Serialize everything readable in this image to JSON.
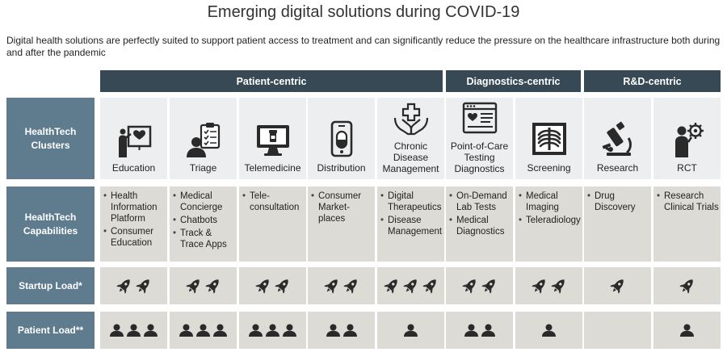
{
  "title": "Emerging digital solutions during COVID-19",
  "subtitle": "Digital health solutions are perfectly suited to support patient access to treatment and can significantly reduce the pressure on the healthcare infrastructure both during and after the pandemic",
  "groups": [
    {
      "label": "Patient-centric"
    },
    {
      "label": "Diagnostics-centric"
    },
    {
      "label": "R&D-centric"
    }
  ],
  "row_labels": {
    "clusters": "HealthTech Clusters",
    "capabilities": "HealthTech Capabilities",
    "startup_load": "Startup Load*",
    "patient_load": "Patient Load**"
  },
  "columns": [
    {
      "cluster": "Education",
      "icon": "whiteboard-heart-icon",
      "capabilities": [
        "Health Information Platform",
        "Consumer Education"
      ],
      "startup_load": 2,
      "patient_load": 3
    },
    {
      "cluster": "Triage",
      "icon": "clipboard-person-icon",
      "capabilities": [
        "Medical Concierge",
        "Chatbots",
        "Track & Trace Apps"
      ],
      "startup_load": 2,
      "patient_load": 3
    },
    {
      "cluster": "Telemedicine",
      "icon": "monitor-medicine-icon",
      "capabilities": [
        "Tele-consultation"
      ],
      "startup_load": 2,
      "patient_load": 3
    },
    {
      "cluster": "Distribution",
      "icon": "smartphone-pill-icon",
      "capabilities": [
        "Consumer Market-places"
      ],
      "startup_load": 2,
      "patient_load": 2
    },
    {
      "cluster": "Chronic Disease Management",
      "icon": "hands-cross-icon",
      "capabilities": [
        "Digital Therapeutics",
        "Disease Management"
      ],
      "startup_load": 3,
      "patient_load": 1
    },
    {
      "cluster": "Point-of-Care Testing Diagnostics",
      "icon": "browser-heart-icon",
      "capabilities": [
        "On-Demand Lab Tests",
        "Medical Diagnostics"
      ],
      "startup_load": 2,
      "patient_load": 2
    },
    {
      "cluster": "Screening",
      "icon": "xray-ribcage-icon",
      "capabilities": [
        "Medical Imaging",
        "Teleradiology"
      ],
      "startup_load": 2,
      "patient_load": 1
    },
    {
      "cluster": "Research",
      "icon": "microscope-icon",
      "capabilities": [
        "Drug Discovery"
      ],
      "startup_load": 1,
      "patient_load": 0
    },
    {
      "cluster": "RCT",
      "icon": "person-gear-icon",
      "capabilities": [
        "Research Clinical Trials"
      ],
      "startup_load": 1,
      "patient_load": 1
    }
  ],
  "colors": {
    "group_header": "#364954",
    "row_label": "#5f7c8f",
    "cluster_bg": "#edeef0",
    "cell_bg": "#dddbd6",
    "icon": "#2a2a2a"
  }
}
